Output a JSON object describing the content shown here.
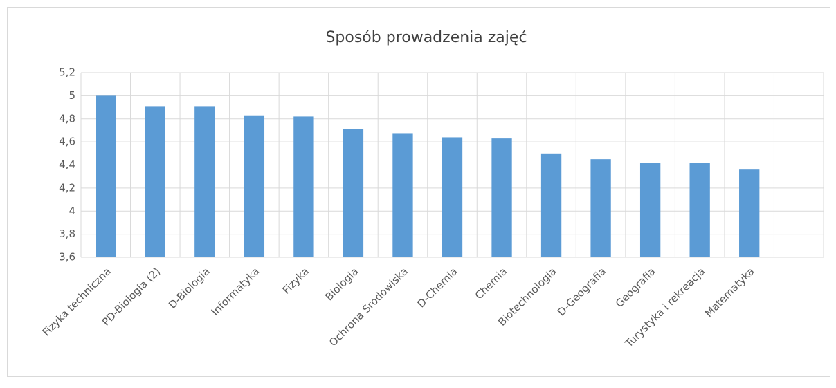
{
  "chart_data": {
    "type": "bar",
    "title": "Sposób prowadzenia zajęć",
    "categories": [
      "Fizyka techniczna",
      "PD-Biologia (2)",
      "D-Biologia",
      "Informatyka",
      "Fizyka",
      "Biologia",
      "Ochrona Środowiska",
      "D-Chemia",
      "Chemia",
      "Biotechnologia",
      "D-Geografia",
      "Geografia",
      "Turystyka i rekreacja",
      "Matematyka",
      null
    ],
    "values": [
      5.0,
      4.91,
      4.91,
      4.83,
      4.82,
      4.71,
      4.67,
      4.64,
      4.63,
      4.5,
      4.45,
      4.42,
      4.42,
      4.36,
      null
    ],
    "color": "#5b9bd5",
    "ylim": [
      3.6,
      5.2
    ],
    "yticks": [
      {
        "value": 3.6,
        "label": "3,6"
      },
      {
        "value": 3.8,
        "label": "3,8"
      },
      4,
      {
        "value": 4.2,
        "label": "4,2"
      },
      {
        "value": 4.4,
        "label": "4,4"
      },
      {
        "value": 4.6,
        "label": "4,6"
      },
      {
        "value": 4.8,
        "label": "4,8"
      },
      5,
      {
        "value": 5.2,
        "label": "5,2"
      }
    ],
    "grid": true
  }
}
